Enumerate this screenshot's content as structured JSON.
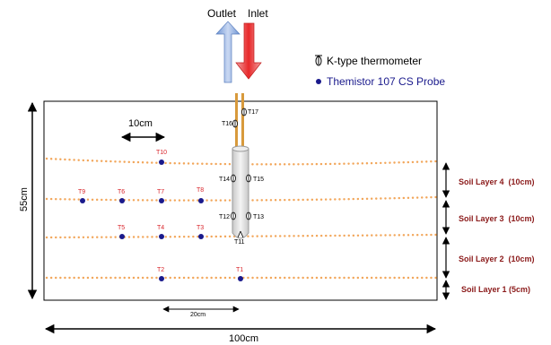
{
  "header": {
    "outlet": "Outlet",
    "inlet": "Inlet"
  },
  "legend": {
    "k_type": "K-type thermometer",
    "thermistor": "Themistor 107 CS Probe"
  },
  "dimensions": {
    "scale": "10cm",
    "height": "55cm",
    "width": "100cm",
    "spacing": "20cm"
  },
  "thermistors": [
    "T10",
    "T9",
    "T6",
    "T7",
    "T8",
    "T5",
    "T4",
    "T3",
    "T2",
    "T1"
  ],
  "k_type": [
    "T17",
    "T16",
    "T14",
    "T15",
    "T12",
    "T13",
    "T11"
  ],
  "layers": [
    "Soil Layer 4  (10cm)",
    "Soil Layer 3  (10cm)",
    "Soil Layer 2  (10cm)",
    "Soil Layer 1 (5cm)"
  ],
  "colors": {
    "outlet_arrow": "#8fb0e3",
    "inlet_arrow": "#e8282a",
    "thermistor": "#1a1a8c",
    "label_red": "#d9262c",
    "pipe": "#d89a3c",
    "dots": "#f2a65a"
  }
}
